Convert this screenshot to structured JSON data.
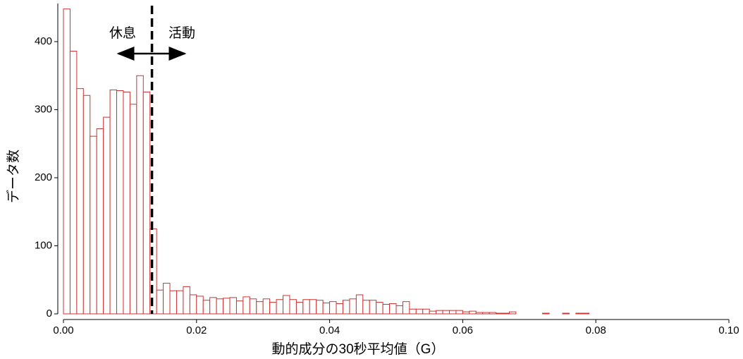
{
  "chart_data": {
    "type": "histogram",
    "x_label": "動的成分の30秒平均値（G）",
    "y_label": "データ数",
    "annotations": [
      "休息",
      "活動"
    ],
    "vline": 0.0133,
    "color": "#cc3333",
    "bins": [
      0,
      0.001,
      0.002,
      0.003,
      0.004,
      0.005,
      0.006,
      0.007,
      0.008,
      0.009,
      0.01,
      0.011,
      0.012,
      0.013,
      0.014,
      0.015,
      0.016,
      0.017,
      0.018,
      0.019,
      0.02,
      0.021,
      0.022,
      0.023,
      0.024,
      0.025,
      0.026,
      0.027,
      0.028,
      0.029,
      0.03,
      0.031,
      0.032,
      0.033,
      0.034,
      0.035,
      0.036,
      0.037,
      0.038,
      0.039,
      0.04,
      0.041,
      0.042,
      0.043,
      0.044,
      0.045,
      0.046,
      0.047,
      0.048,
      0.049,
      0.05,
      0.051,
      0.052,
      0.053,
      0.054,
      0.055,
      0.056,
      0.057,
      0.058,
      0.059,
      0.06,
      0.061,
      0.062,
      0.063,
      0.064,
      0.065,
      0.066,
      0.067,
      0.068,
      0.069,
      0.07,
      0.071,
      0.072,
      0.073,
      0.074,
      0.075,
      0.076,
      0.077,
      0.078,
      0.079,
      0.08,
      0.081,
      0.082,
      0.083,
      0.084,
      0.085,
      0.086,
      0.087,
      0.088,
      0.089,
      0.09,
      0.091,
      0.092,
      0.093,
      0.094,
      0.095,
      0.096,
      0.097,
      0.098,
      0.099,
      0.1
    ],
    "values": [
      448,
      386,
      331,
      321,
      261,
      272,
      289,
      329,
      328,
      326,
      308,
      350,
      326,
      125,
      35,
      45,
      34,
      34,
      40,
      28,
      26,
      20,
      24,
      22,
      23,
      24,
      19,
      25,
      22,
      18,
      22,
      17,
      21,
      27,
      21,
      17,
      21,
      21,
      20,
      16,
      18,
      15,
      20,
      22,
      28,
      20,
      20,
      17,
      14,
      15,
      12,
      18,
      7,
      7,
      7,
      4,
      5,
      5,
      5,
      5,
      3,
      4,
      2,
      2,
      2,
      1,
      1,
      3,
      0,
      0,
      0,
      0,
      1,
      0,
      0,
      1,
      0,
      1,
      1,
      0,
      0,
      0,
      0,
      0,
      0,
      0,
      0,
      0,
      0,
      0,
      0,
      0,
      0,
      0,
      0,
      0,
      0,
      0,
      0,
      0
    ],
    "xlim": [
      0,
      0.1
    ],
    "ylim": [
      0,
      456
    ],
    "xticks": [
      {
        "value": 0,
        "label": "0.00"
      },
      {
        "value": 0.02,
        "label": "0.02"
      },
      {
        "value": 0.04,
        "label": "0.04"
      },
      {
        "value": 0.06,
        "label": "0.06"
      },
      {
        "value": 0.08,
        "label": "0.08"
      },
      {
        "value": 0.1,
        "label": "0.10"
      }
    ],
    "yticks": [
      0,
      100,
      200,
      300,
      400
    ]
  }
}
